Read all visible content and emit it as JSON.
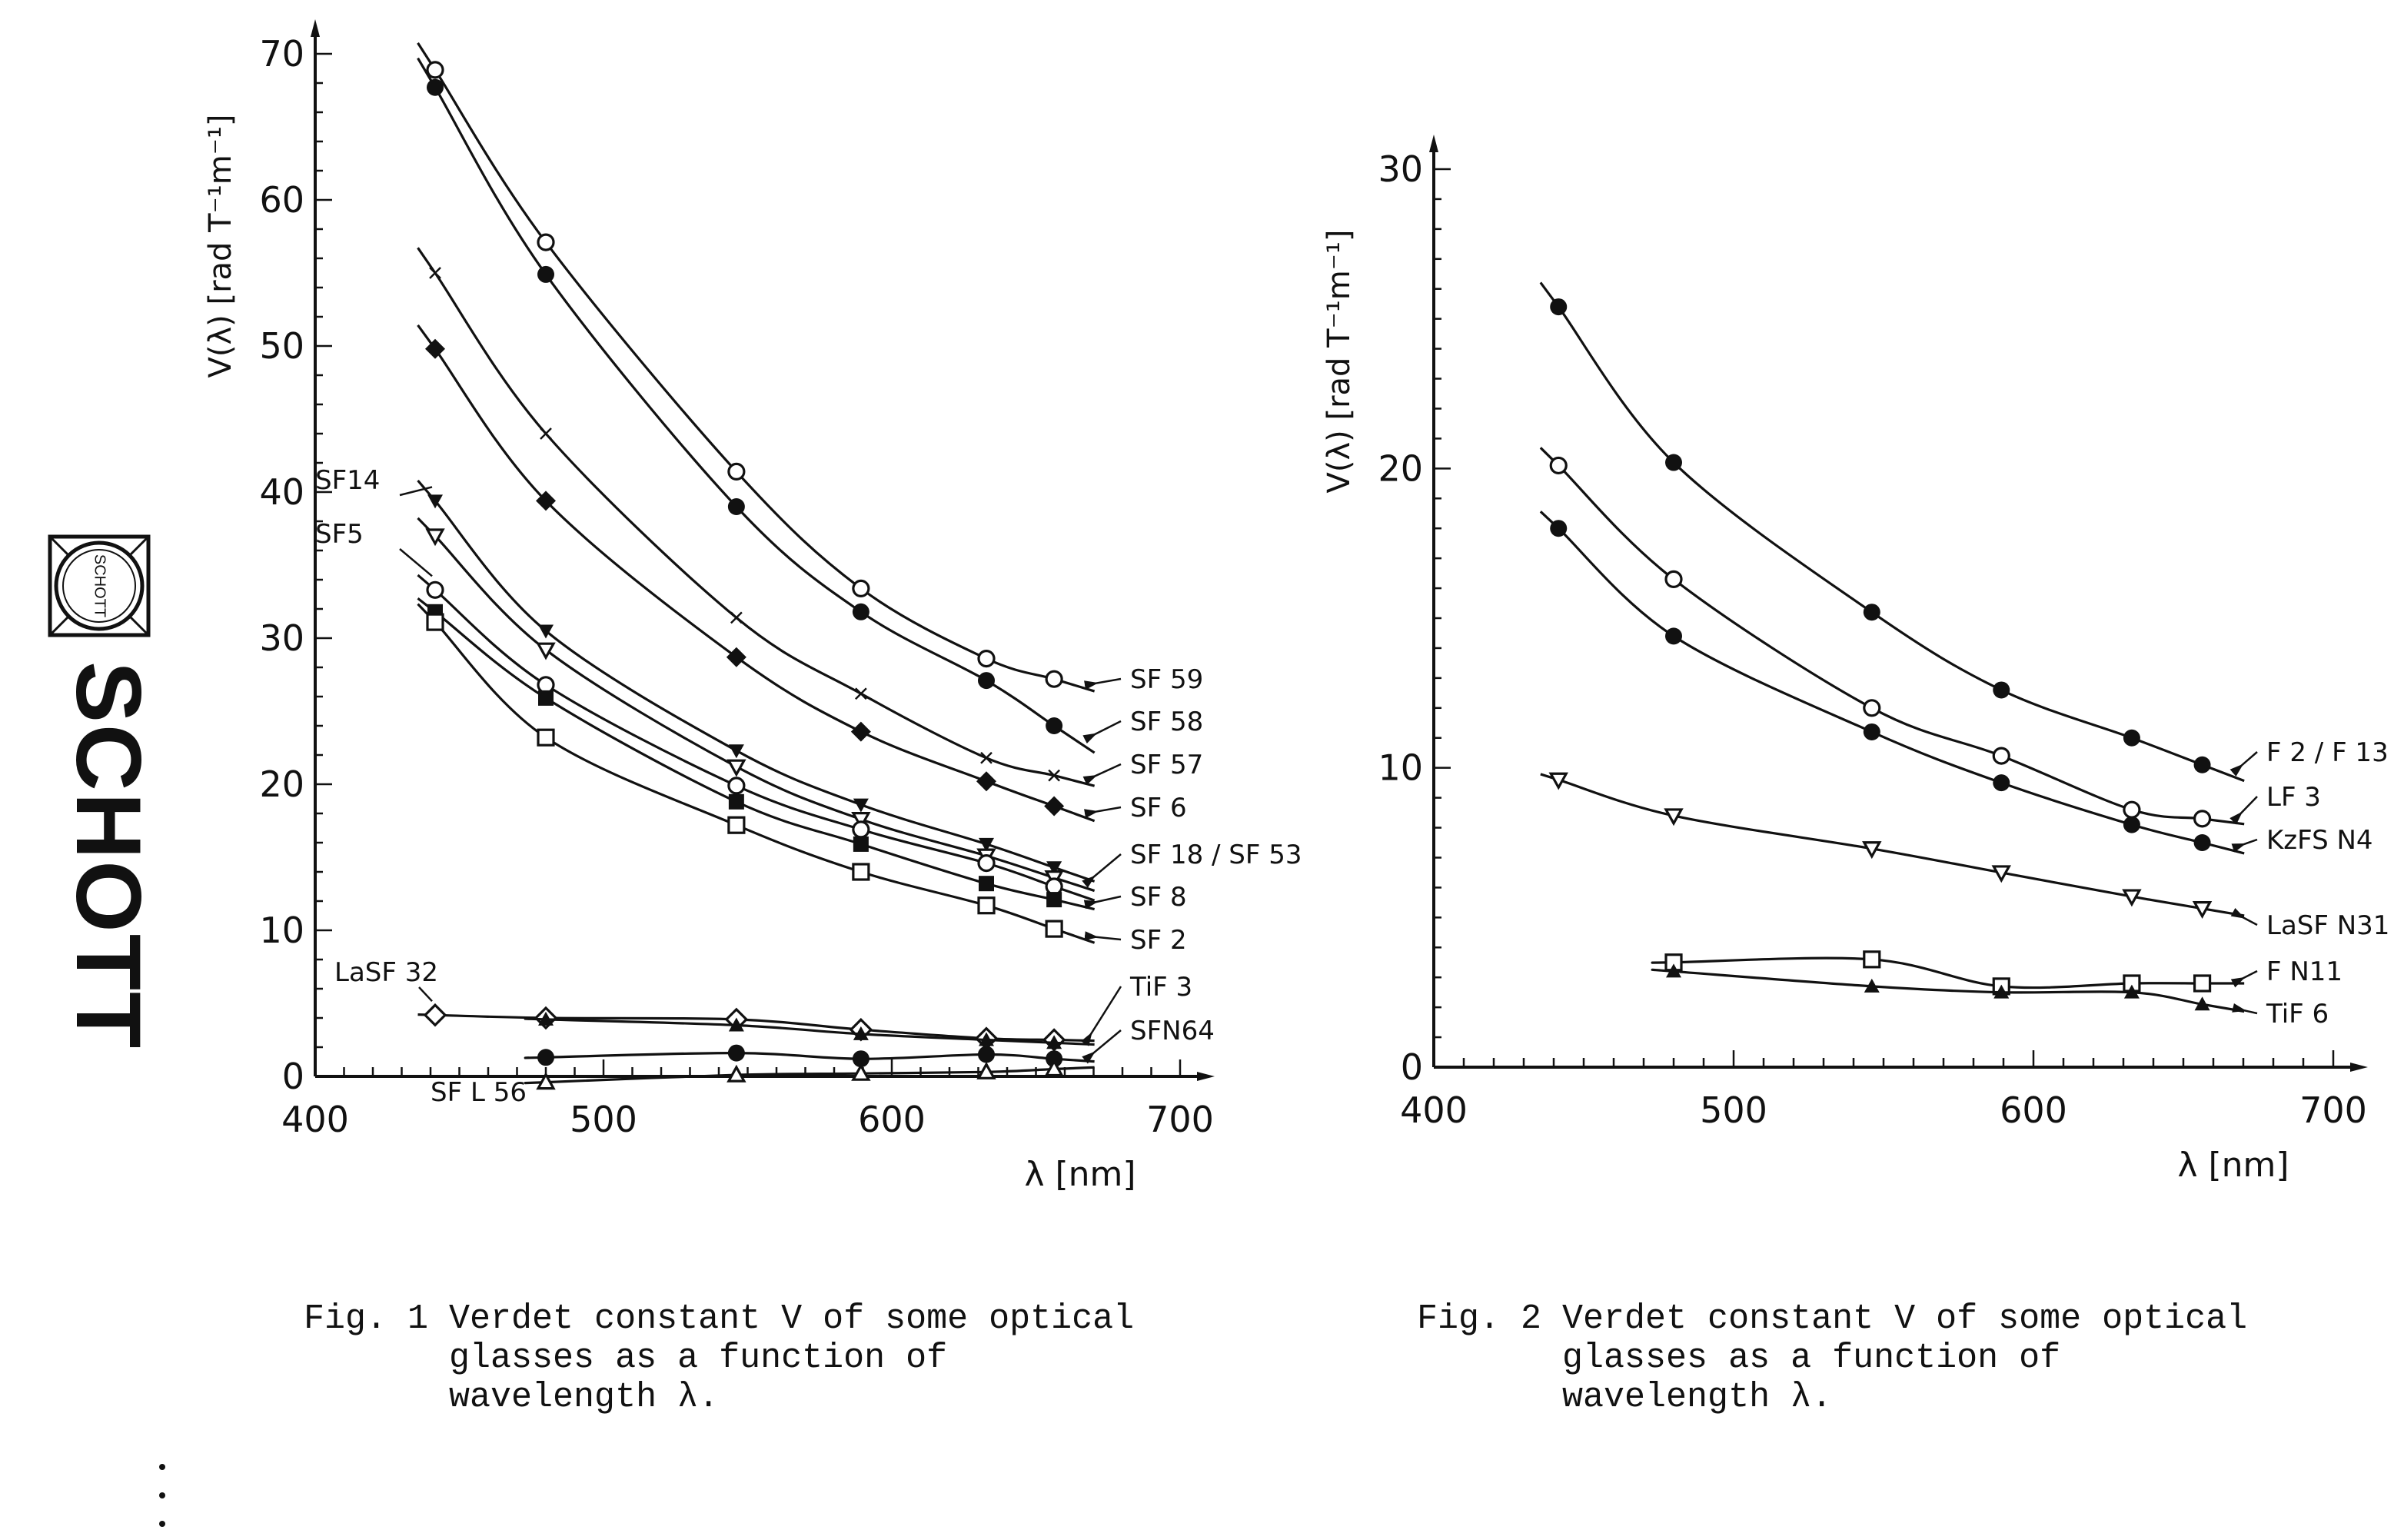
{
  "logo": {
    "text": "SCHOTT",
    "seal_text": "SCHOTT"
  },
  "figures": [
    {
      "caption_lines": [
        "Fig. 1 Verdet constant V of some optical",
        "       glasses as a function of",
        "       wavelength λ."
      ]
    },
    {
      "caption_lines": [
        "Fig. 2 Verdet constant V of some optical",
        "       glasses as a function of",
        "       wavelength λ."
      ]
    }
  ],
  "chart_data": [
    {
      "type": "line",
      "xlabel": "λ [nm]",
      "ylabel": "V(λ)  [rad T⁻¹m⁻¹]",
      "xlim": [
        400,
        700
      ],
      "ylim": [
        0,
        70
      ],
      "x_ticks": [
        400,
        500,
        600,
        700
      ],
      "y_ticks": [
        0,
        10,
        20,
        30,
        40,
        50,
        60,
        70
      ],
      "x": [
        441.6,
        480,
        546.1,
        589.3,
        632.8,
        656.3
      ],
      "series": [
        {
          "name": "SF 59",
          "marker": "open-circle",
          "values": [
            68.9,
            57.1,
            41.4,
            33.4,
            28.6,
            27.2
          ]
        },
        {
          "name": "SF 58",
          "marker": "filled-circle",
          "values": [
            67.7,
            54.9,
            39.0,
            31.8,
            27.1,
            24.0
          ]
        },
        {
          "name": "SF 57",
          "marker": "cross",
          "values": [
            55.0,
            44.0,
            31.4,
            26.2,
            21.8,
            20.6
          ]
        },
        {
          "name": "SF 6",
          "marker": "filled-diamond",
          "values": [
            49.8,
            39.4,
            28.7,
            23.6,
            20.2,
            18.5
          ]
        },
        {
          "name": "SF14",
          "marker": "filled-triangle-down",
          "values": [
            39.4,
            30.5,
            22.3,
            18.6,
            15.9,
            14.3
          ]
        },
        {
          "name": "SF 18 / SF 53",
          "marker": "open-triangle-down",
          "values": [
            37.0,
            29.2,
            21.2,
            17.6,
            15.1,
            13.6
          ]
        },
        {
          "name": "SF5",
          "marker": "open-circle",
          "values": [
            33.3,
            26.8,
            19.9,
            16.9,
            14.6,
            13.0
          ]
        },
        {
          "name": "SF 8",
          "marker": "filled-square",
          "values": [
            31.8,
            25.9,
            18.8,
            15.9,
            13.2,
            12.1
          ]
        },
        {
          "name": "SF 2",
          "marker": "open-square",
          "values": [
            31.1,
            23.2,
            17.2,
            14.0,
            11.7,
            10.1
          ]
        },
        {
          "name": "LaSF 32",
          "marker": "open-diamond",
          "values": [
            4.2,
            4.0,
            3.9,
            3.2,
            2.6,
            2.5
          ]
        },
        {
          "name": "TiF 3",
          "marker": "filled-triangle-up",
          "values": [
            null,
            3.9,
            3.5,
            2.9,
            2.5,
            2.3
          ]
        },
        {
          "name": "SFN64",
          "marker": "filled-circle",
          "values": [
            null,
            1.3,
            1.6,
            1.2,
            1.5,
            1.2
          ]
        },
        {
          "name": "SF L 56",
          "marker": "open-triangle-up",
          "values": [
            null,
            -0.4,
            0.1,
            0.2,
            0.3,
            0.5
          ]
        }
      ]
    },
    {
      "type": "line",
      "xlabel": "λ [nm]",
      "ylabel": "V(λ)  [rad T⁻¹m⁻¹]",
      "xlim": [
        400,
        700
      ],
      "ylim": [
        0,
        30
      ],
      "x_ticks": [
        400,
        500,
        600,
        700
      ],
      "y_ticks": [
        0,
        10,
        20,
        30
      ],
      "x": [
        441.6,
        480,
        546.1,
        589.3,
        632.8,
        656.3
      ],
      "series": [
        {
          "name": "F 2 / F 13",
          "marker": "filled-circle",
          "values": [
            25.4,
            20.2,
            15.2,
            12.6,
            11.0,
            10.1
          ]
        },
        {
          "name": "LF 3",
          "marker": "open-circle",
          "values": [
            20.1,
            16.3,
            12.0,
            10.4,
            8.6,
            8.3
          ]
        },
        {
          "name": "KzFS N4",
          "marker": "filled-circle",
          "values": [
            18.0,
            14.4,
            11.2,
            9.5,
            8.1,
            7.5
          ]
        },
        {
          "name": "LaSF N31",
          "marker": "open-triangle-down",
          "values": [
            9.6,
            8.4,
            7.3,
            6.5,
            5.7,
            5.3
          ]
        },
        {
          "name": "F  N11",
          "marker": "open-square",
          "values": [
            null,
            3.5,
            3.6,
            2.7,
            2.8,
            2.8
          ]
        },
        {
          "name": "TiF 6",
          "marker": "filled-triangle-up",
          "values": [
            null,
            3.2,
            2.7,
            2.5,
            2.5,
            2.1
          ]
        }
      ]
    }
  ]
}
